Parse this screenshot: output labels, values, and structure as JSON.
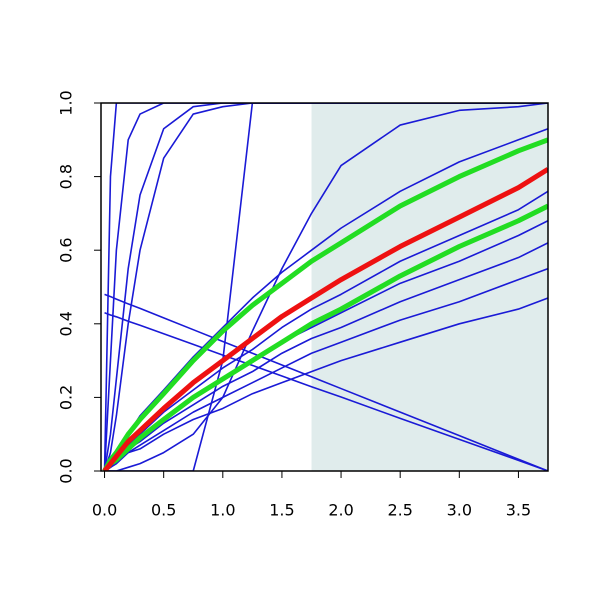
{
  "chart_data": {
    "type": "line",
    "x": [
      0,
      0.05,
      0.1,
      0.2,
      0.3,
      0.5,
      0.75,
      1,
      1.25,
      1.5,
      1.75,
      2,
      2.5,
      3,
      3.5,
      3.75
    ],
    "xlim": [
      -0.03,
      3.75
    ],
    "ylim": [
      0,
      1
    ],
    "xticks": [
      {
        "value": 0,
        "label": "0.0"
      },
      0.5,
      {
        "value": 1,
        "label": "1.0"
      },
      1.5,
      {
        "value": 2,
        "label": "2.0"
      },
      2.5,
      {
        "value": 3,
        "label": "3.0"
      },
      3.5
    ],
    "yticks": [
      {
        "value": 0,
        "label": "0.0"
      },
      0.2,
      0.4,
      0.6,
      0.8,
      {
        "value": 1,
        "label": "1.0"
      }
    ],
    "shaded_x": [
      1.75,
      3.75
    ],
    "shade_color": "#e0ecec",
    "series": [
      {
        "color": "#1a1ad6",
        "values": [
          0,
          0.8,
          1,
          1,
          1,
          1,
          1,
          1,
          1,
          1,
          1,
          1,
          1,
          1,
          1,
          1
        ]
      },
      {
        "color": "#1a1ad6",
        "values": [
          0,
          0.3,
          0.6,
          0.9,
          0.97,
          1,
          1,
          1,
          1,
          1,
          1,
          1,
          1,
          1,
          1,
          1
        ]
      },
      {
        "color": "#1a1ad6",
        "values": [
          0,
          0.1,
          0.25,
          0.55,
          0.75,
          0.93,
          0.99,
          1,
          1,
          1,
          1,
          1,
          1,
          1,
          1,
          1
        ]
      },
      {
        "color": "#1a1ad6",
        "values": [
          0,
          0.05,
          0.15,
          0.4,
          0.6,
          0.85,
          0.97,
          0.99,
          1,
          1,
          1,
          1,
          1,
          1,
          1,
          1
        ]
      },
      {
        "color": "#1a1ad6",
        "values": [
          0,
          0,
          0,
          0,
          0,
          0,
          0,
          0.3,
          1,
          1,
          1,
          1,
          1,
          1,
          1,
          1
        ]
      },
      {
        "color": "#1a1ad6",
        "values": [
          0,
          0,
          0,
          0.01,
          0.02,
          0.05,
          0.1,
          0.2,
          0.38,
          0.55,
          0.7,
          0.83,
          0.94,
          0.98,
          0.99,
          1
        ]
      },
      {
        "color": "#1a1ad6",
        "values": [
          0.48,
          0.474,
          0.467,
          0.454,
          0.442,
          0.416,
          0.384,
          0.352,
          0.32,
          0.288,
          0.256,
          0.224,
          0.16,
          0.096,
          0.032,
          0
        ]
      },
      {
        "color": "#1a1ad6",
        "values": [
          0.43,
          0.424,
          0.419,
          0.407,
          0.396,
          0.373,
          0.344,
          0.315,
          0.287,
          0.258,
          0.229,
          0.201,
          0.143,
          0.086,
          0.029,
          0
        ]
      },
      {
        "color": "#1a1ad6",
        "values": [
          0,
          0.01,
          0.02,
          0.05,
          0.06,
          0.1,
          0.14,
          0.17,
          0.21,
          0.24,
          0.27,
          0.3,
          0.35,
          0.4,
          0.44,
          0.47
        ]
      },
      {
        "color": "#1a1ad6",
        "values": [
          0,
          0.01,
          0.03,
          0.05,
          0.07,
          0.11,
          0.16,
          0.2,
          0.24,
          0.28,
          0.32,
          0.35,
          0.41,
          0.46,
          0.52,
          0.55
        ]
      },
      {
        "color": "#1a1ad6",
        "values": [
          0,
          0.01,
          0.03,
          0.06,
          0.08,
          0.13,
          0.18,
          0.23,
          0.27,
          0.32,
          0.36,
          0.39,
          0.46,
          0.52,
          0.58,
          0.62
        ]
      },
      {
        "color": "#1a1ad6",
        "values": [
          0,
          0.02,
          0.03,
          0.07,
          0.09,
          0.14,
          0.2,
          0.25,
          0.3,
          0.35,
          0.39,
          0.43,
          0.51,
          0.57,
          0.64,
          0.68
        ]
      },
      {
        "color": "#1a1ad6",
        "values": [
          0,
          0.02,
          0.04,
          0.07,
          0.1,
          0.16,
          0.22,
          0.28,
          0.33,
          0.39,
          0.44,
          0.48,
          0.57,
          0.64,
          0.71,
          0.76
        ]
      },
      {
        "color": "#1a1ad6",
        "values": [
          0,
          0.03,
          0.05,
          0.1,
          0.15,
          0.22,
          0.31,
          0.39,
          0.47,
          0.54,
          0.6,
          0.66,
          0.76,
          0.84,
          0.9,
          0.93
        ]
      },
      {
        "color": "#22dd22",
        "values": [
          0,
          0.03,
          0.05,
          0.1,
          0.14,
          0.21,
          0.3,
          0.38,
          0.45,
          0.51,
          0.57,
          0.62,
          0.72,
          0.8,
          0.87,
          0.9
        ]
      },
      {
        "color": "#22dd22",
        "values": [
          0,
          0.02,
          0.03,
          0.06,
          0.09,
          0.14,
          0.2,
          0.25,
          0.3,
          0.35,
          0.4,
          0.44,
          0.53,
          0.61,
          0.68,
          0.72
        ]
      },
      {
        "color": "#ee1111",
        "values": [
          0,
          0.02,
          0.04,
          0.08,
          0.11,
          0.17,
          0.24,
          0.3,
          0.36,
          0.42,
          0.47,
          0.52,
          0.61,
          0.69,
          0.77,
          0.82
        ]
      }
    ]
  }
}
